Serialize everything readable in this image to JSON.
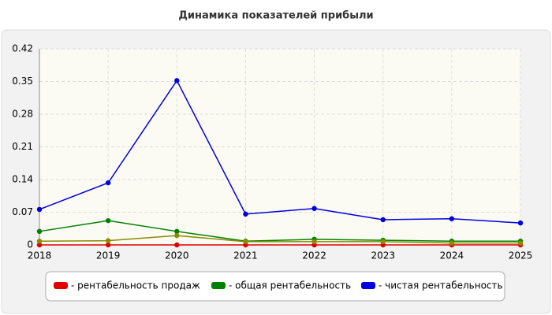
{
  "chart_data": {
    "type": "line",
    "title": "Динамика показателей прибыли",
    "categories": [
      "2018",
      "2019",
      "2020",
      "2021",
      "2022",
      "2023",
      "2024",
      "2025"
    ],
    "series": [
      {
        "name": "- рентабельность продаж",
        "color": "#e00000",
        "values": [
          0,
          0,
          0,
          0,
          0,
          0,
          0,
          0
        ]
      },
      {
        "name": "- общая рентабельность",
        "color": "#008000",
        "values": [
          0.029,
          0.052,
          0.029,
          0.008,
          0.012,
          0.01,
          0.008,
          0.008
        ]
      },
      {
        "color": "#8b8b00",
        "values": [
          0.008,
          0.009,
          0.02,
          0.007,
          0.007,
          0.007,
          0.004,
          0.004
        ]
      },
      {
        "name": "- чистая рентабельность",
        "color": "#0000e0",
        "values": [
          0.076,
          0.133,
          0.352,
          0.066,
          0.078,
          0.054,
          0.056,
          0.047
        ]
      }
    ],
    "ylim": [
      0,
      0.42
    ],
    "yticks": [
      0,
      0.07,
      0.14,
      0.21,
      0.28,
      0.35,
      0.42
    ],
    "grid": true
  }
}
